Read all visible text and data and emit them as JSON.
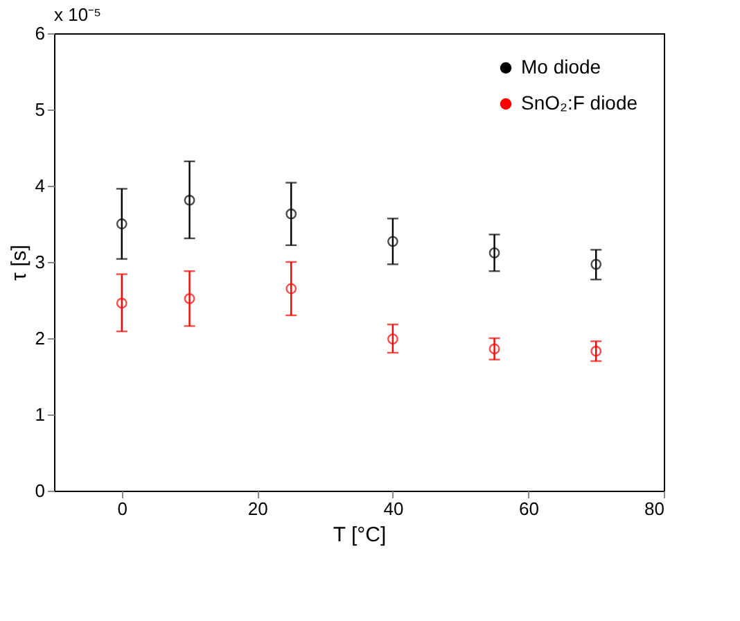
{
  "chart_data": {
    "type": "scatter",
    "xlabel": "T [°C]",
    "ylabel": "τ [s]",
    "x": [
      0,
      10,
      25,
      40,
      55,
      70
    ],
    "series": [
      {
        "name": "Mo diode",
        "color": "#000000",
        "values": [
          3.5,
          3.81,
          3.63,
          3.27,
          3.12,
          2.97
        ],
        "errors": [
          [
            3.04,
            3.96
          ],
          [
            3.31,
            4.32
          ],
          [
            3.22,
            4.04
          ],
          [
            2.97,
            3.57
          ],
          [
            2.88,
            3.36
          ],
          [
            2.77,
            3.16
          ]
        ]
      },
      {
        "name": "SnO₂:F diode",
        "color": "#ff0000",
        "values": [
          2.46,
          2.52,
          2.65,
          1.99,
          1.86,
          1.83
        ],
        "errors": [
          [
            2.09,
            2.84
          ],
          [
            2.16,
            2.88
          ],
          [
            2.3,
            3.0
          ],
          [
            1.81,
            2.18
          ],
          [
            1.72,
            2.0
          ],
          [
            1.7,
            1.96
          ]
        ]
      }
    ],
    "xlim": [
      -10,
      80
    ],
    "xticks": [
      0,
      20,
      40,
      60,
      80
    ],
    "ylim": [
      0,
      6
    ],
    "yticks": [
      0,
      1,
      2,
      3,
      4,
      5,
      6
    ],
    "annotations": [
      "x 10⁻⁵"
    ],
    "marker": "circle",
    "legend": "top right",
    "grid": false
  }
}
